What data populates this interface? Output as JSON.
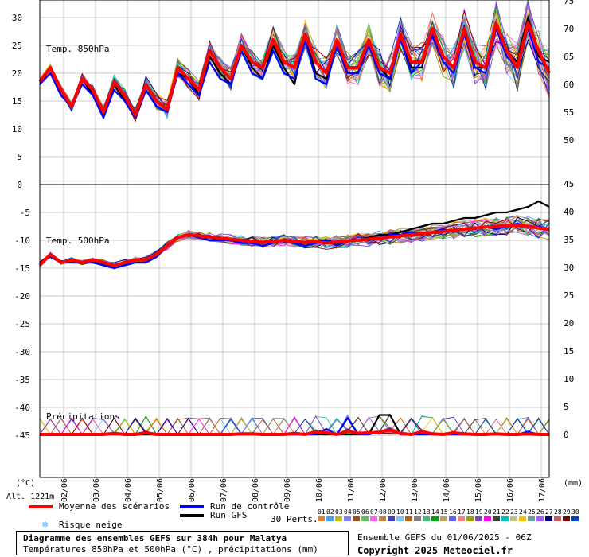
{
  "chart_data": [
    {
      "type": "line",
      "title": "Temp. 850hPa",
      "ylabel": "(°C)",
      "left_ticks": [
        "30",
        "25",
        "20",
        "15",
        "10",
        "5",
        "0"
      ],
      "right_ticks": [
        "75",
        "70",
        "65",
        "60",
        "55",
        "50"
      ],
      "ylim": [
        0,
        33
      ],
      "x_labels": [
        "02/06",
        "03/06",
        "04/06",
        "05/06",
        "06/06",
        "07/06",
        "08/06",
        "09/06",
        "10/06",
        "11/06",
        "12/06",
        "13/06",
        "14/06",
        "15/06",
        "16/06",
        "17/06"
      ],
      "series": [
        {
          "name": "Moyenne des scénarios",
          "color": "#ff0000",
          "values": [
            18.5,
            21,
            17,
            14,
            19,
            17,
            13,
            18.5,
            16,
            12.5,
            18,
            15,
            13.5,
            21,
            19,
            17,
            24,
            21,
            19,
            25,
            22,
            21,
            26,
            22,
            21,
            27,
            22,
            20,
            26,
            21,
            21,
            26,
            21,
            20,
            27,
            22,
            22,
            28,
            23,
            21,
            28,
            22,
            21,
            29,
            24,
            21,
            29,
            24,
            20
          ]
        },
        {
          "name": "Run de contrôle",
          "color": "#0000ff",
          "values": [
            18,
            20,
            16,
            14,
            18,
            16,
            12,
            17,
            15,
            12,
            17,
            14,
            13,
            20,
            18,
            16,
            22,
            19,
            18,
            24,
            20,
            19,
            24,
            20,
            19,
            26,
            19,
            18,
            25,
            20,
            20,
            25,
            20,
            19,
            26,
            20,
            22,
            27,
            22,
            20,
            27,
            21,
            20,
            28,
            23,
            21,
            28,
            22,
            21
          ]
        },
        {
          "name": "Run GFS",
          "color": "#000000",
          "values": [
            18,
            21,
            16,
            14,
            19,
            16,
            12,
            18,
            15,
            12,
            17,
            14,
            13,
            20,
            19,
            16,
            23,
            20,
            18,
            25,
            21,
            19,
            25,
            21,
            18,
            27,
            20,
            19,
            25,
            20,
            20,
            26,
            21,
            19,
            27,
            21,
            21,
            28,
            22,
            20,
            28,
            21,
            21,
            28,
            24,
            22,
            30,
            23,
            22
          ]
        }
      ]
    },
    {
      "type": "line",
      "title": "Temp. 500hPa",
      "left_ticks": [
        "-5",
        "-10",
        "-15",
        "-20",
        "-25",
        "-30",
        "-35",
        "-40",
        "-45"
      ],
      "right_ticks": [
        "45",
        "40",
        "35",
        "30",
        "25",
        "20",
        "15",
        "10",
        "5",
        "0"
      ],
      "ylim": [
        -49,
        -1
      ],
      "x_labels": [
        "02/06",
        "03/06",
        "04/06",
        "05/06",
        "06/06",
        "07/06",
        "08/06",
        "09/06",
        "10/06",
        "11/06",
        "12/06",
        "13/06",
        "14/06",
        "15/06",
        "16/06",
        "17/06"
      ],
      "series": [
        {
          "name": "Moyenne des scénarios",
          "color": "#ff0000",
          "values": [
            -14.5,
            -12.5,
            -14,
            -13.5,
            -14,
            -13.5,
            -14,
            -14.5,
            -14,
            -13.5,
            -13.5,
            -12.5,
            -11,
            -9.5,
            -9,
            -9.2,
            -9.4,
            -9.6,
            -9.8,
            -10,
            -10.2,
            -10.4,
            -10.2,
            -10,
            -10.2,
            -10.4,
            -10.2,
            -10.5,
            -10.3,
            -10.1,
            -10,
            -9.8,
            -9.6,
            -9.4,
            -9.2,
            -9,
            -8.8,
            -8.6,
            -8.4,
            -8.2,
            -8,
            -7.8,
            -7.6,
            -7.5,
            -7.4,
            -7.3,
            -7.5,
            -7.8,
            -8
          ]
        },
        {
          "name": "Run de contrôle",
          "color": "#0000ff",
          "values": [
            -14,
            -13,
            -14,
            -14,
            -14,
            -14,
            -14.5,
            -15,
            -14.5,
            -14,
            -14,
            -13,
            -11,
            -9.5,
            -9,
            -9.5,
            -10,
            -10,
            -10,
            -10.5,
            -10.5,
            -11,
            -10.5,
            -10,
            -10.5,
            -11,
            -10.5,
            -10,
            -11,
            -10,
            -10,
            -10,
            -9.5,
            -9,
            -9,
            -8.5,
            -9,
            -8.5,
            -8,
            -8.5,
            -8,
            -8,
            -7.5,
            -8,
            -7.5,
            -7,
            -7.5,
            -7.5,
            -8
          ]
        },
        {
          "name": "Run GFS",
          "color": "#000000",
          "values": [
            -14,
            -12.5,
            -14,
            -13.5,
            -14,
            -14,
            -14,
            -14.5,
            -14,
            -13.5,
            -13.5,
            -12.5,
            -11,
            -9.5,
            -9,
            -9.5,
            -9.5,
            -10,
            -10,
            -10,
            -10.5,
            -10.5,
            -10,
            -10,
            -10.5,
            -10.5,
            -10,
            -10,
            -10.5,
            -10,
            -10,
            -9.5,
            -9,
            -9,
            -8.5,
            -8,
            -7.5,
            -7,
            -7,
            -6.5,
            -6,
            -6,
            -5.5,
            -5,
            -5,
            -4.5,
            -4,
            -3,
            -4
          ]
        }
      ]
    },
    {
      "type": "line",
      "title": "Précipitations",
      "ylabel": "(mm)",
      "ylim": [
        0,
        45
      ],
      "x_labels": [
        "02/06",
        "03/06",
        "04/06",
        "05/06",
        "06/06",
        "07/06",
        "08/06",
        "09/06",
        "10/06",
        "11/06",
        "12/06",
        "13/06",
        "14/06",
        "15/06",
        "16/06",
        "17/06"
      ],
      "series": [
        {
          "name": "Moyenne des scénarios",
          "color": "#ff0000",
          "values": [
            0,
            0,
            0,
            0,
            0,
            0,
            0,
            0.2,
            0,
            0,
            0.3,
            0,
            0,
            0,
            0,
            0,
            0,
            0,
            0,
            0.1,
            0.1,
            0,
            0,
            0,
            0.2,
            0,
            0.5,
            0.3,
            0,
            0.6,
            0.2,
            0.3,
            0.4,
            0.8,
            0.2,
            0,
            0.5,
            0.1,
            0,
            0.3,
            0.1,
            0,
            0,
            0.1,
            0,
            0,
            0.1,
            0,
            0
          ]
        },
        {
          "name": "Run de contrôle",
          "color": "#0000ff",
          "values": [
            0,
            0,
            0,
            0,
            0,
            0,
            0,
            0.3,
            0,
            0,
            0.5,
            0,
            0,
            0,
            0,
            0,
            0,
            0,
            0,
            0,
            0,
            0,
            0,
            0,
            0,
            0,
            0,
            1,
            0,
            3,
            0,
            0,
            0.5,
            1,
            0,
            0,
            0,
            0,
            0,
            0,
            0,
            0,
            0,
            0,
            0,
            0,
            0.5,
            0,
            0
          ]
        },
        {
          "name": "Run GFS",
          "color": "#000000",
          "values": [
            0,
            0,
            0,
            0,
            0,
            0,
            0,
            0,
            0,
            0,
            0,
            0,
            0,
            0,
            0,
            0,
            0,
            0,
            0,
            0,
            0,
            0,
            0,
            0,
            0,
            0,
            0,
            0,
            0,
            0,
            0,
            0,
            3.5,
            3.5,
            0,
            0,
            0,
            0,
            0,
            0,
            0,
            0,
            0,
            0,
            0,
            0,
            0,
            0,
            0
          ]
        }
      ]
    }
  ],
  "axis": {
    "left_unit": "(°C)",
    "right_unit": "(mm)",
    "altitude": "Alt. 1221m"
  },
  "legend": {
    "mean": "Moyenne des scénarios",
    "control": "Run de contrôle",
    "gfs": "Run GFS",
    "snow": "Risque neige",
    "perts": "30 Perts.",
    "pert_numbers": [
      "01",
      "02",
      "03",
      "04",
      "05",
      "06",
      "07",
      "08",
      "09",
      "10",
      "11",
      "12",
      "13",
      "14",
      "15",
      "16",
      "17",
      "18",
      "19",
      "20",
      "21",
      "22",
      "23",
      "24",
      "25",
      "26",
      "27",
      "28",
      "29",
      "30"
    ],
    "pert_colors": [
      "#e08030",
      "#40a0ff",
      "#c0c000",
      "#8080ff",
      "#a05020",
      "#60c060",
      "#ff60ff",
      "#c08040",
      "#4040c0",
      "#80c0ff",
      "#c06000",
      "#808080",
      "#40c080",
      "#00a000",
      "#c0a060",
      "#6060ff",
      "#ff8080",
      "#a0a000",
      "#8040c0",
      "#ff00ff",
      "#404040",
      "#00c0c0",
      "#c0c080",
      "#ffc000",
      "#60a0a0",
      "#a060ff",
      "#000080",
      "#c06060",
      "#800000",
      "#0040c0"
    ]
  },
  "footer": {
    "title": "Diagramme des ensembles GEFS sur 384h pour Malatya",
    "subtitle": "Températures 850hPa et 500hPa (°C) , précipitations (mm)",
    "run": "Ensemble GEFS du 01/06/2025 - 06Z",
    "copyright": "Copyright 2025 Meteociel.fr"
  }
}
